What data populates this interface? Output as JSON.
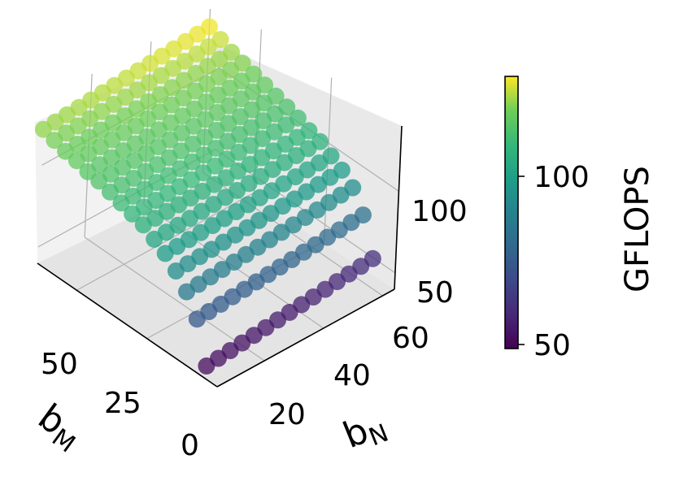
{
  "chart_data": {
    "type": "scatter3d",
    "title": "",
    "xlabel": "b_N",
    "ylabel": "b_M",
    "zlabel": "",
    "x_axis": {
      "label_main": "b",
      "label_sub": "N",
      "ticks": [
        "20",
        "40",
        "60"
      ],
      "range": [
        4,
        64
      ]
    },
    "y_axis": {
      "label_main": "b",
      "label_sub": "M",
      "ticks": [
        "0",
        "25",
        "50"
      ],
      "range": [
        0,
        64
      ]
    },
    "z_axis": {
      "ticks": [
        "50",
        "100"
      ],
      "range": [
        40,
        140
      ]
    },
    "colorbar": {
      "label": "GFLOPS",
      "cmap": "viridis",
      "range": [
        45,
        130
      ],
      "ticks": [
        "50",
        "100"
      ]
    },
    "grid": true,
    "series": [
      {
        "M": 4,
        "N": [
          4,
          60,
          4
        ],
        "gflops": [
          48,
          58
        ]
      },
      {
        "M": 8,
        "N": [
          4,
          60,
          4
        ],
        "gflops": [
          72,
          80
        ]
      },
      {
        "M": 12,
        "N": [
          4,
          60,
          4
        ],
        "gflops": [
          84,
          92
        ]
      },
      {
        "M": 16,
        "N": [
          4,
          60,
          4
        ],
        "gflops": [
          92,
          98
        ]
      },
      {
        "M": 20,
        "N": [
          4,
          60,
          4
        ],
        "gflops": [
          98,
          102
        ]
      },
      {
        "M": 24,
        "N": [
          4,
          60,
          4
        ],
        "gflops": [
          102,
          106
        ]
      },
      {
        "M": 28,
        "N": [
          4,
          60,
          4
        ],
        "gflops": [
          106,
          108
        ]
      },
      {
        "M": 32,
        "N": [
          4,
          60,
          4
        ],
        "gflops": [
          108,
          111
        ]
      },
      {
        "M": 36,
        "N": [
          4,
          60,
          4
        ],
        "gflops": [
          110,
          113
        ]
      },
      {
        "M": 40,
        "N": [
          4,
          60,
          4
        ],
        "gflops": [
          112,
          115
        ]
      },
      {
        "M": 44,
        "N": [
          4,
          60,
          4
        ],
        "gflops": [
          114,
          117
        ]
      },
      {
        "M": 48,
        "N": [
          4,
          60,
          4
        ],
        "gflops": [
          115,
          119
        ]
      },
      {
        "M": 52,
        "N": [
          4,
          60,
          4
        ],
        "gflops": [
          117,
          121
        ]
      },
      {
        "M": 56,
        "N": [
          4,
          60,
          4
        ],
        "gflops": [
          118,
          123
        ]
      },
      {
        "M": 60,
        "N": [
          4,
          60,
          4
        ],
        "gflops": [
          120,
          126
        ]
      },
      {
        "M": 64,
        "N": [
          4,
          60,
          4
        ],
        "gflops": [
          122,
          129
        ]
      }
    ]
  }
}
